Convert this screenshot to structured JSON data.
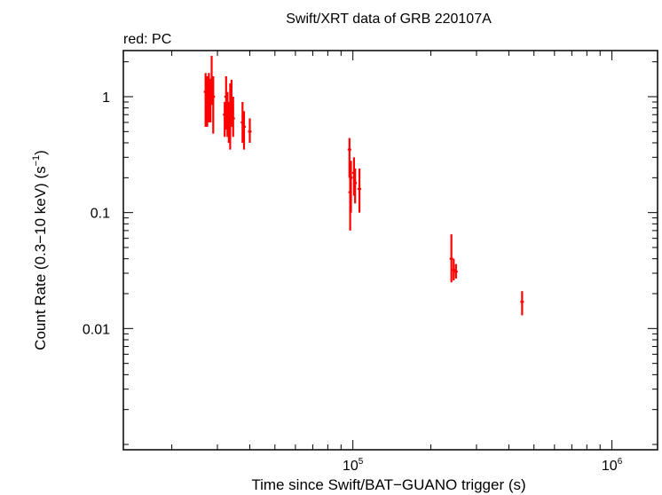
{
  "chart_data": {
    "type": "scatter",
    "title": "Swift/XRT data of GRB 220107A",
    "subtitle": "red: PC",
    "xlabel": "Time since Swift/BAT−GUANO trigger (s)",
    "ylabel_main": "Count Rate (0.3−10 keV) (s",
    "ylabel_exp": "−1",
    "ylabel_close": ")",
    "xscale": "log",
    "yscale": "log",
    "xlim": [
      13000,
      1500000
    ],
    "ylim": [
      0.0009,
      2.5
    ],
    "x_ticks": [
      {
        "value": 100000,
        "base": "10",
        "exp": "5"
      },
      {
        "value": 1000000,
        "base": "10",
        "exp": "6"
      }
    ],
    "y_ticks": [
      {
        "value": 0.01,
        "label": "0.01"
      },
      {
        "value": 0.1,
        "label": "0.1"
      },
      {
        "value": 1,
        "label": "1"
      }
    ],
    "grid": false,
    "series": [
      {
        "color": "#ff0000",
        "points": [
          {
            "x": 27000,
            "y": 1.1,
            "ylo": 0.55,
            "yhi": 1.6
          },
          {
            "x": 27400,
            "y": 0.9,
            "ylo": 0.55,
            "yhi": 1.5
          },
          {
            "x": 27800,
            "y": 1.15,
            "ylo": 0.6,
            "yhi": 1.6
          },
          {
            "x": 28200,
            "y": 0.95,
            "ylo": 0.6,
            "yhi": 1.4
          },
          {
            "x": 28500,
            "y": 1.4,
            "ylo": 0.85,
            "yhi": 2.25
          },
          {
            "x": 28900,
            "y": 1.0,
            "ylo": 0.48,
            "yhi": 1.5
          },
          {
            "x": 32000,
            "y": 0.7,
            "ylo": 0.45,
            "yhi": 0.9
          },
          {
            "x": 32400,
            "y": 1.0,
            "ylo": 0.52,
            "yhi": 1.5
          },
          {
            "x": 32800,
            "y": 0.75,
            "ylo": 0.45,
            "yhi": 1.1
          },
          {
            "x": 33200,
            "y": 0.6,
            "ylo": 0.4,
            "yhi": 0.9
          },
          {
            "x": 33600,
            "y": 0.85,
            "ylo": 0.35,
            "yhi": 1.3
          },
          {
            "x": 34000,
            "y": 0.95,
            "ylo": 0.55,
            "yhi": 1.4
          },
          {
            "x": 34500,
            "y": 0.65,
            "ylo": 0.45,
            "yhi": 1.0
          },
          {
            "x": 37500,
            "y": 0.6,
            "ylo": 0.4,
            "yhi": 0.9
          },
          {
            "x": 38000,
            "y": 0.55,
            "ylo": 0.35,
            "yhi": 0.75
          },
          {
            "x": 40000,
            "y": 0.5,
            "ylo": 0.4,
            "yhi": 0.65
          },
          {
            "x": 97000,
            "y": 0.35,
            "ylo": 0.2,
            "yhi": 0.44
          },
          {
            "x": 97600,
            "y": 0.15,
            "ylo": 0.07,
            "yhi": 0.24
          },
          {
            "x": 98300,
            "y": 0.2,
            "ylo": 0.1,
            "yhi": 0.28
          },
          {
            "x": 101000,
            "y": 0.22,
            "ylo": 0.14,
            "yhi": 0.3
          },
          {
            "x": 102000,
            "y": 0.18,
            "ylo": 0.12,
            "yhi": 0.24
          },
          {
            "x": 106000,
            "y": 0.16,
            "ylo": 0.1,
            "yhi": 0.24
          },
          {
            "x": 240000,
            "y": 0.04,
            "ylo": 0.025,
            "yhi": 0.065
          },
          {
            "x": 245000,
            "y": 0.032,
            "ylo": 0.026,
            "yhi": 0.04
          },
          {
            "x": 250000,
            "y": 0.031,
            "ylo": 0.027,
            "yhi": 0.036
          },
          {
            "x": 450000,
            "y": 0.017,
            "ylo": 0.013,
            "yhi": 0.021
          }
        ]
      }
    ]
  }
}
